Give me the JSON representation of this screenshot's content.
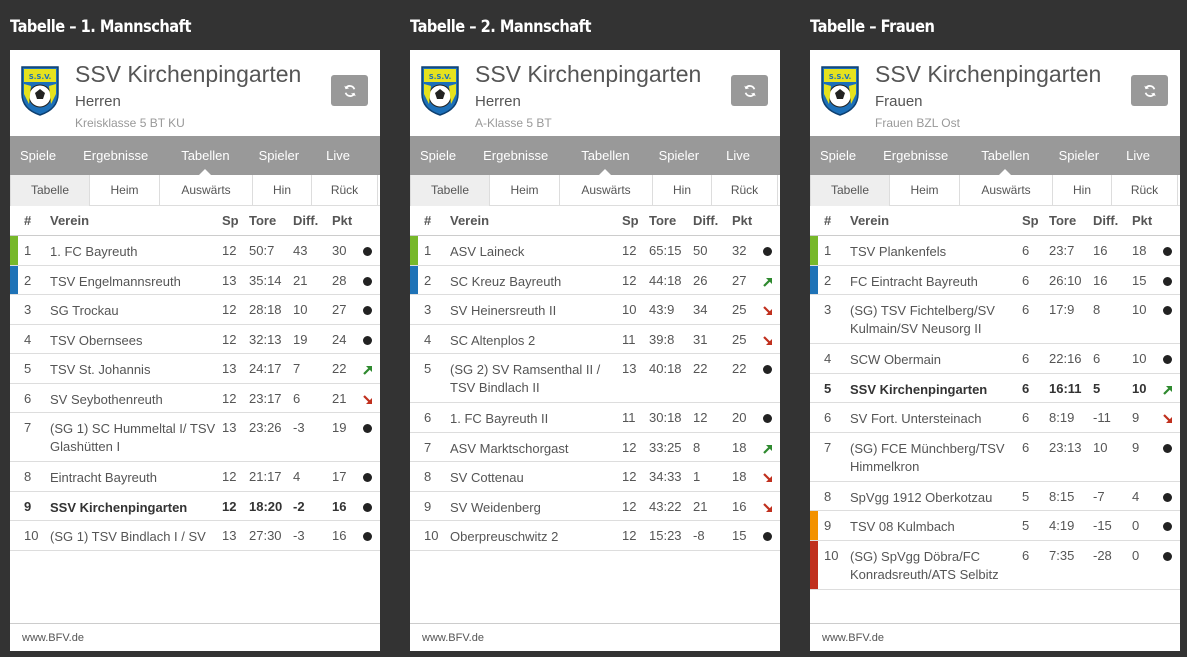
{
  "colors": {
    "green": "#77b82a",
    "blue": "#1f73b7",
    "orange": "#f39200",
    "red": "#c0301e",
    "up": "#2f8a2f",
    "down": "#c0301e"
  },
  "nav": [
    "Spiele",
    "Ergebnisse",
    "Tabellen",
    "Spieler",
    "Live"
  ],
  "subtabs": [
    "Tabelle",
    "Heim",
    "Auswärts",
    "Hin",
    "Rück"
  ],
  "headers": {
    "num": "#",
    "team": "Verein",
    "sp": "Sp",
    "tore": "Tore",
    "diff": "Diff.",
    "pkt": "Pkt"
  },
  "footer": "www.BFV.de",
  "tables": [
    {
      "title": "Tabelle – 1. Mannschaft",
      "club": "SSV Kirchenpingarten",
      "team": "Herren",
      "league": "Kreisklasse 5 BT KU",
      "rows": [
        {
          "num": "1",
          "team": "1. FC Bayreuth",
          "sp": "12",
          "tore": "50:7",
          "diff": "43",
          "pkt": "30",
          "trend": "same",
          "marker": "green"
        },
        {
          "num": "2",
          "team": "TSV Engelmannsreuth",
          "sp": "13",
          "tore": "35:14",
          "diff": "21",
          "pkt": "28",
          "trend": "same",
          "marker": "blue"
        },
        {
          "num": "3",
          "team": "SG Trockau",
          "sp": "12",
          "tore": "28:18",
          "diff": "10",
          "pkt": "27",
          "trend": "same"
        },
        {
          "num": "4",
          "team": "TSV Obernsees",
          "sp": "12",
          "tore": "32:13",
          "diff": "19",
          "pkt": "24",
          "trend": "same"
        },
        {
          "num": "5",
          "team": "TSV St. Johannis",
          "sp": "13",
          "tore": "24:17",
          "diff": "7",
          "pkt": "22",
          "trend": "up"
        },
        {
          "num": "6",
          "team": "SV Seybothenreuth",
          "sp": "12",
          "tore": "23:17",
          "diff": "6",
          "pkt": "21",
          "trend": "down"
        },
        {
          "num": "7",
          "team": "(SG 1) SC Hummeltal I/ TSV Glashütten I",
          "sp": "13",
          "tore": "23:26",
          "diff": "-3",
          "pkt": "19",
          "trend": "same",
          "tall": true
        },
        {
          "num": "8",
          "team": "Eintracht Bayreuth",
          "sp": "12",
          "tore": "21:17",
          "diff": "4",
          "pkt": "17",
          "trend": "same"
        },
        {
          "num": "9",
          "team": "SSV Kirchenpingarten",
          "sp": "12",
          "tore": "18:20",
          "diff": "-2",
          "pkt": "16",
          "trend": "same",
          "own": true
        },
        {
          "num": "10",
          "team": "(SG 1) TSV Bindlach I / SV",
          "sp": "13",
          "tore": "27:30",
          "diff": "-3",
          "pkt": "16",
          "trend": "same"
        }
      ]
    },
    {
      "title": "Tabelle – 2. Mannschaft",
      "club": "SSV Kirchenpingarten",
      "team": "Herren",
      "league": "A-Klasse 5 BT",
      "rows": [
        {
          "num": "1",
          "team": "ASV Laineck",
          "sp": "12",
          "tore": "65:15",
          "diff": "50",
          "pkt": "32",
          "trend": "same",
          "marker": "green"
        },
        {
          "num": "2",
          "team": "SC Kreuz Bayreuth",
          "sp": "12",
          "tore": "44:18",
          "diff": "26",
          "pkt": "27",
          "trend": "up",
          "marker": "blue"
        },
        {
          "num": "3",
          "team": "SV Heinersreuth II",
          "sp": "10",
          "tore": "43:9",
          "diff": "34",
          "pkt": "25",
          "trend": "down"
        },
        {
          "num": "4",
          "team": "SC Altenplos 2",
          "sp": "11",
          "tore": "39:8",
          "diff": "31",
          "pkt": "25",
          "trend": "down"
        },
        {
          "num": "5",
          "team": "(SG 2) SV Ramsenthal II / TSV Bindlach II",
          "sp": "13",
          "tore": "40:18",
          "diff": "22",
          "pkt": "22",
          "trend": "same",
          "tall": true
        },
        {
          "num": "6",
          "team": "1. FC Bayreuth II",
          "sp": "11",
          "tore": "30:18",
          "diff": "12",
          "pkt": "20",
          "trend": "same"
        },
        {
          "num": "7",
          "team": "ASV Marktschorgast",
          "sp": "12",
          "tore": "33:25",
          "diff": "8",
          "pkt": "18",
          "trend": "up"
        },
        {
          "num": "8",
          "team": "SV Cottenau",
          "sp": "12",
          "tore": "34:33",
          "diff": "1",
          "pkt": "18",
          "trend": "down"
        },
        {
          "num": "9",
          "team": "SV Weidenberg",
          "sp": "12",
          "tore": "43:22",
          "diff": "21",
          "pkt": "16",
          "trend": "down"
        },
        {
          "num": "10",
          "team": "Oberpreuschwitz 2",
          "sp": "12",
          "tore": "15:23",
          "diff": "-8",
          "pkt": "15",
          "trend": "same"
        }
      ]
    },
    {
      "title": "Tabelle – Frauen",
      "club": "SSV Kirchenpingarten",
      "team": "Frauen",
      "league": "Frauen BZL Ost",
      "rows": [
        {
          "num": "1",
          "team": "TSV Plankenfels",
          "sp": "6",
          "tore": "23:7",
          "diff": "16",
          "pkt": "18",
          "trend": "same",
          "marker": "green"
        },
        {
          "num": "2",
          "team": "FC Eintracht Bayreuth",
          "sp": "6",
          "tore": "26:10",
          "diff": "16",
          "pkt": "15",
          "trend": "same",
          "marker": "blue"
        },
        {
          "num": "3",
          "team": "(SG) TSV Fichtelberg/SV Kulmain/SV Neusorg II",
          "sp": "6",
          "tore": "17:9",
          "diff": "8",
          "pkt": "10",
          "trend": "same",
          "tall": true
        },
        {
          "num": "4",
          "team": "SCW Obermain",
          "sp": "6",
          "tore": "22:16",
          "diff": "6",
          "pkt": "10",
          "trend": "same"
        },
        {
          "num": "5",
          "team": "SSV Kirchenpingarten",
          "sp": "6",
          "tore": "16:11",
          "diff": "5",
          "pkt": "10",
          "trend": "up",
          "own": true
        },
        {
          "num": "6",
          "team": "SV Fort. Untersteinach",
          "sp": "6",
          "tore": "8:19",
          "diff": "-11",
          "pkt": "9",
          "trend": "down"
        },
        {
          "num": "7",
          "team": "(SG) FCE Münchberg/TSV Himmelkron",
          "sp": "6",
          "tore": "23:13",
          "diff": "10",
          "pkt": "9",
          "trend": "same",
          "tall": true
        },
        {
          "num": "8",
          "team": "SpVgg 1912 Oberkotzau",
          "sp": "5",
          "tore": "8:15",
          "diff": "-7",
          "pkt": "4",
          "trend": "same"
        },
        {
          "num": "9",
          "team": "TSV 08 Kulmbach",
          "sp": "5",
          "tore": "4:19",
          "diff": "-15",
          "pkt": "0",
          "trend": "same",
          "marker": "orange"
        },
        {
          "num": "10",
          "team": "(SG) SpVgg Döbra/FC Konradsreuth/ATS Selbitz",
          "sp": "6",
          "tore": "7:35",
          "diff": "-28",
          "pkt": "0",
          "trend": "same",
          "tall": true,
          "marker": "red"
        }
      ]
    }
  ]
}
